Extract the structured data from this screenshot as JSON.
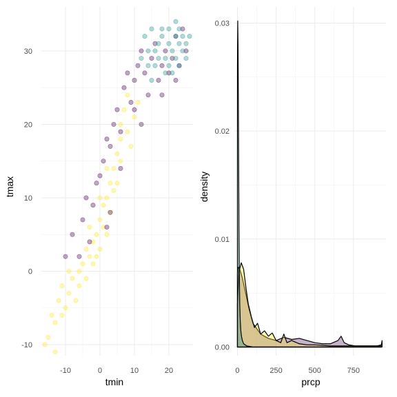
{
  "chart_data": [
    {
      "type": "scatter",
      "xlabel": "tmin",
      "ylabel": "tmax",
      "xlim": [
        -17,
        27
      ],
      "ylim": [
        -11.5,
        36
      ],
      "x_ticks": [
        -10,
        0,
        10,
        20
      ],
      "y_ticks": [
        -10,
        0,
        10,
        20,
        30
      ],
      "grid": true,
      "point_alpha": 0.35,
      "series": [
        {
          "color": "#fde725",
          "points": [
            [
              -16,
              -10
            ],
            [
              -15,
              -9
            ],
            [
              -14,
              -6
            ],
            [
              -13,
              -7
            ],
            [
              -13,
              -11
            ],
            [
              -12,
              -4
            ],
            [
              -11,
              -6
            ],
            [
              -11,
              -2
            ],
            [
              -10,
              -5
            ],
            [
              -9,
              -3
            ],
            [
              -8,
              -1
            ],
            [
              -7,
              -4
            ],
            [
              -6,
              0
            ],
            [
              -5,
              1
            ],
            [
              -4,
              3
            ],
            [
              -4,
              -1
            ],
            [
              -3,
              2
            ],
            [
              -2,
              4
            ],
            [
              -2,
              1
            ],
            [
              -1,
              5
            ],
            [
              0,
              3
            ],
            [
              0,
              7
            ],
            [
              1,
              6
            ],
            [
              1,
              9
            ],
            [
              2,
              10
            ],
            [
              2,
              5
            ],
            [
              3,
              12
            ],
            [
              4,
              14
            ],
            [
              5,
              16
            ],
            [
              5,
              12
            ],
            [
              6,
              18
            ],
            [
              6,
              20
            ],
            [
              7,
              22
            ],
            [
              8,
              19
            ],
            [
              8,
              24
            ],
            [
              9,
              17
            ],
            [
              10,
              21
            ],
            [
              11,
              23
            ],
            [
              -6,
              -2
            ],
            [
              -3,
              6
            ],
            [
              0,
              10
            ],
            [
              3,
              8
            ],
            [
              -9,
              0
            ],
            [
              -1,
              2
            ],
            [
              4,
              11
            ],
            [
              6,
              15
            ],
            [
              2,
              14
            ]
          ]
        },
        {
          "color": "#440154",
          "points": [
            [
              -8,
              5
            ],
            [
              -6,
              2
            ],
            [
              -5,
              7
            ],
            [
              -3,
              4
            ],
            [
              -2,
              9
            ],
            [
              -1,
              12
            ],
            [
              0,
              13
            ],
            [
              1,
              15
            ],
            [
              2,
              18
            ],
            [
              3,
              17
            ],
            [
              4,
              20
            ],
            [
              5,
              22
            ],
            [
              6,
              19
            ],
            [
              7,
              25
            ],
            [
              8,
              27
            ],
            [
              9,
              23
            ],
            [
              10,
              26
            ],
            [
              11,
              28
            ],
            [
              12,
              30
            ],
            [
              13,
              27
            ],
            [
              14,
              24
            ],
            [
              15,
              29
            ],
            [
              16,
              31
            ],
            [
              17,
              26
            ],
            [
              18,
              28
            ],
            [
              19,
              30
            ],
            [
              20,
              27
            ],
            [
              21,
              29
            ],
            [
              22,
              32
            ],
            [
              23,
              28
            ],
            [
              24,
              33
            ],
            [
              25,
              30
            ],
            [
              -10,
              2
            ],
            [
              -4,
              10
            ],
            [
              2,
              6
            ],
            [
              6,
              14
            ],
            [
              3,
              8
            ],
            [
              12,
              20
            ],
            [
              10,
              22
            ],
            [
              18,
              24
            ],
            [
              22,
              26
            ]
          ]
        },
        {
          "color": "#21918c",
          "points": [
            [
              12,
              29
            ],
            [
              13,
              32
            ],
            [
              14,
              30
            ],
            [
              15,
              33
            ],
            [
              16,
              28
            ],
            [
              17,
              31
            ],
            [
              18,
              32
            ],
            [
              19,
              29
            ],
            [
              20,
              31
            ],
            [
              20,
              33
            ],
            [
              21,
              30
            ],
            [
              21,
              27
            ],
            [
              22,
              32
            ],
            [
              22,
              29
            ],
            [
              23,
              31
            ],
            [
              23,
              33
            ],
            [
              24,
              30
            ],
            [
              24,
              32
            ],
            [
              25,
              31
            ],
            [
              25,
              29
            ],
            [
              19,
              27
            ],
            [
              17,
              29
            ],
            [
              16,
              30
            ],
            [
              18,
              33
            ],
            [
              14,
              28
            ],
            [
              23,
              28
            ],
            [
              26,
              32
            ],
            [
              15,
              26
            ],
            [
              20,
              28
            ],
            [
              22,
              34
            ]
          ]
        }
      ]
    },
    {
      "type": "area",
      "xlabel": "prcp",
      "ylabel": "density",
      "xlim": [
        -20,
        960
      ],
      "ylim": [
        -0.0008,
        0.0315
      ],
      "x_ticks": [
        0,
        250,
        500,
        750
      ],
      "y_ticks": [
        0.0,
        0.01,
        0.02,
        0.03
      ],
      "y_tick_labels": [
        "0.00",
        "0.01",
        "0.02",
        "0.03"
      ],
      "grid": true,
      "series": [
        {
          "fill": "#440154",
          "fill_alpha": 0.3,
          "x": [
            0,
            5,
            15,
            30,
            50,
            75,
            100,
            150,
            200,
            250,
            300,
            350,
            400,
            450,
            500,
            550,
            600,
            650,
            670,
            690,
            720,
            760,
            800,
            850,
            900,
            930,
            935
          ],
          "y": [
            0.0068,
            0.0074,
            0.0072,
            0.0065,
            0.0052,
            0.0035,
            0.0022,
            0.0012,
            0.0008,
            0.0006,
            0.0009,
            0.0007,
            0.0008,
            0.0006,
            0.0004,
            0.0003,
            0.0003,
            0.0006,
            0.001,
            0.0004,
            0.0002,
            0.0001,
            0.0001,
            0.0001,
            0.0001,
            0.0002,
            0.0006
          ]
        },
        {
          "fill": "#fde725",
          "fill_alpha": 0.35,
          "x": [
            0,
            10,
            25,
            40,
            55,
            70,
            90,
            110,
            130,
            150,
            175,
            200,
            225,
            250,
            280,
            300,
            320,
            350,
            400,
            450,
            500,
            600,
            700,
            800,
            900,
            930
          ],
          "y": [
            0.004,
            0.007,
            0.0078,
            0.0072,
            0.0055,
            0.004,
            0.0028,
            0.0018,
            0.0022,
            0.0012,
            0.0015,
            0.001,
            0.0013,
            0.0006,
            0.0004,
            0.0012,
            0.0004,
            0.0006,
            0.0003,
            0.0002,
            0.0002,
            0.0001,
            0.0001,
            0.0001,
            0.0001,
            0.0001
          ]
        },
        {
          "fill": "#21918c",
          "fill_alpha": 0.35,
          "x": [
            0,
            2,
            4,
            6,
            8,
            10,
            12,
            15,
            18,
            22,
            26,
            32,
            40,
            60,
            100,
            200,
            400,
            930
          ],
          "y": [
            0.026,
            0.0302,
            0.028,
            0.023,
            0.017,
            0.011,
            0.007,
            0.004,
            0.0025,
            0.0015,
            0.001,
            0.0006,
            0.0003,
            0.0001,
            0.0,
            0.0,
            0.0,
            0.0
          ]
        }
      ]
    }
  ]
}
